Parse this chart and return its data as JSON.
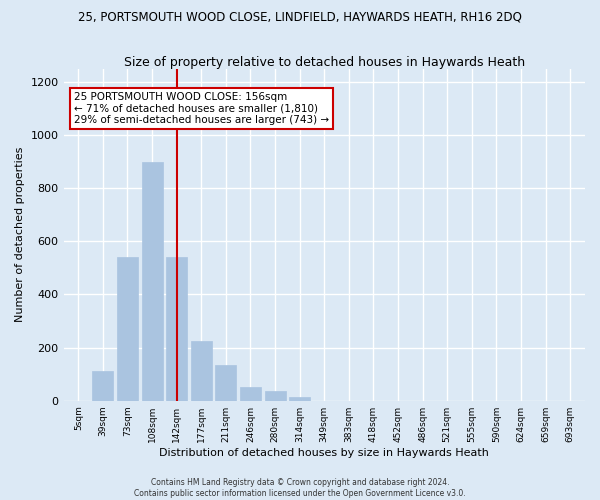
{
  "title_main": "25, PORTSMOUTH WOOD CLOSE, LINDFIELD, HAYWARDS HEATH, RH16 2DQ",
  "title_sub": "Size of property relative to detached houses in Haywards Heath",
  "xlabel": "Distribution of detached houses by size in Haywards Heath",
  "ylabel": "Number of detached properties",
  "bar_labels": [
    "5sqm",
    "39sqm",
    "73sqm",
    "108sqm",
    "142sqm",
    "177sqm",
    "211sqm",
    "246sqm",
    "280sqm",
    "314sqm",
    "349sqm",
    "383sqm",
    "418sqm",
    "452sqm",
    "486sqm",
    "521sqm",
    "555sqm",
    "590sqm",
    "624sqm",
    "659sqm",
    "693sqm"
  ],
  "bar_values": [
    0,
    110,
    540,
    900,
    540,
    225,
    135,
    50,
    35,
    15,
    0,
    0,
    0,
    0,
    0,
    0,
    0,
    0,
    0,
    0,
    0
  ],
  "bar_color": "#aac4e0",
  "vline_x_index": 4,
  "vline_color": "#cc0000",
  "annotation_title": "25 PORTSMOUTH WOOD CLOSE: 156sqm",
  "annotation_line1": "← 71% of detached houses are smaller (1,810)",
  "annotation_line2": "29% of semi-detached houses are larger (743) →",
  "annotation_box_color": "#ffffff",
  "annotation_box_edge": "#cc0000",
  "ylim": [
    0,
    1250
  ],
  "yticks": [
    0,
    200,
    400,
    600,
    800,
    1000,
    1200
  ],
  "footer1": "Contains HM Land Registry data © Crown copyright and database right 2024.",
  "footer2": "Contains public sector information licensed under the Open Government Licence v3.0.",
  "bg_color": "#dce9f5",
  "grid_color": "#ffffff"
}
